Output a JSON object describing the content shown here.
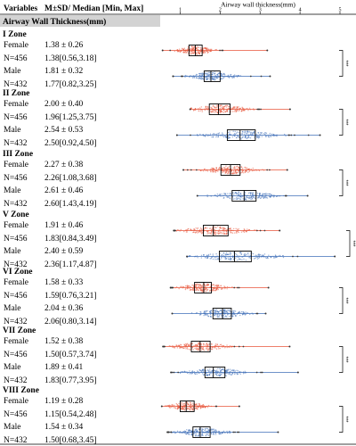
{
  "colors": {
    "female": "#e8553a",
    "male": "#3f6fb8",
    "outlier": "#333333",
    "box": "#000000",
    "section_bg": "#d3d3d3"
  },
  "table": {
    "col_variables": "Variables",
    "col_stats": "M±SD/ Median [Min, Max]",
    "section_title": "Airway Wall Thickness(mm)"
  },
  "chart_data": {
    "type": "box-beeswarm",
    "xlabel": "Airway wall thickness(mm)",
    "xlim": [
      0.5,
      5
    ],
    "xticks": [
      "1",
      "2",
      "3",
      "4",
      "5"
    ],
    "significance": "***",
    "series_styles": [
      {
        "sex": "Female",
        "color": "#e8553a"
      },
      {
        "sex": "Male",
        "color": "#3f6fb8"
      }
    ],
    "zones": [
      {
        "name": "I Zone",
        "groups": [
          {
            "label": "Female",
            "n": "N=456",
            "mean_sd": "1.38 ± 0.26",
            "median_range": "1.38[0.56,3.18]",
            "mean": 1.38,
            "sd": 0.26,
            "median": 1.38,
            "min": 0.56,
            "max": 3.18,
            "q1": 1.22,
            "q3": 1.55
          },
          {
            "label": "Male",
            "n": "N=432",
            "mean_sd": "1.81 ± 0.32",
            "median_range": "1.77[0.82,3.25]",
            "mean": 1.81,
            "sd": 0.32,
            "median": 1.77,
            "min": 0.82,
            "max": 3.25,
            "q1": 1.6,
            "q3": 2.0
          }
        ]
      },
      {
        "name": "II Zone",
        "groups": [
          {
            "label": "Female",
            "n": "N=456",
            "mean_sd": "2.00 ± 0.40",
            "median_range": "1.96[1.25,3.75]",
            "mean": 2.0,
            "sd": 0.4,
            "median": 1.96,
            "min": 1.25,
            "max": 3.75,
            "q1": 1.73,
            "q3": 2.25
          },
          {
            "label": "Male",
            "n": "N=432",
            "mean_sd": "2.54 ± 0.53",
            "median_range": "2.50[0.92,4.50]",
            "mean": 2.54,
            "sd": 0.53,
            "median": 2.5,
            "min": 0.92,
            "max": 4.5,
            "q1": 2.18,
            "q3": 2.88
          }
        ]
      },
      {
        "name": "III Zone",
        "groups": [
          {
            "label": "Female",
            "n": "N=456",
            "mean_sd": "2.27 ± 0.38",
            "median_range": "2.26[1.08,3.68]",
            "mean": 2.27,
            "sd": 0.38,
            "median": 2.26,
            "min": 1.08,
            "max": 3.68,
            "q1": 2.02,
            "q3": 2.5
          },
          {
            "label": "Male",
            "n": "N=432",
            "mean_sd": "2.61 ± 0.46",
            "median_range": "2.60[1.43,4.19]",
            "mean": 2.61,
            "sd": 0.46,
            "median": 2.6,
            "min": 1.43,
            "max": 4.19,
            "q1": 2.3,
            "q3": 2.9
          }
        ]
      },
      {
        "name": "V Zone",
        "groups": [
          {
            "label": "Female",
            "n": "N=456",
            "mean_sd": "1.91 ± 0.46",
            "median_range": "1.83[0.84,3.49]",
            "mean": 1.91,
            "sd": 0.46,
            "median": 1.83,
            "min": 0.84,
            "max": 3.49,
            "q1": 1.58,
            "q3": 2.2
          },
          {
            "label": "Male",
            "n": "N=432",
            "mean_sd": "2.40 ± 0.59",
            "median_range": "2.36[1.17,4.87]",
            "mean": 2.4,
            "sd": 0.59,
            "median": 2.36,
            "min": 1.17,
            "max": 4.87,
            "q1": 1.98,
            "q3": 2.78
          }
        ]
      },
      {
        "name": "VI Zone",
        "groups": [
          {
            "label": "Female",
            "n": "N=456",
            "mean_sd": "1.58 ± 0.33",
            "median_range": "1.59[0.76,3.21]",
            "mean": 1.58,
            "sd": 0.33,
            "median": 1.59,
            "min": 0.76,
            "max": 3.21,
            "q1": 1.36,
            "q3": 1.78
          },
          {
            "label": "Male",
            "n": "N=432",
            "mean_sd": "2.04 ± 0.36",
            "median_range": "2.06[0.80,3.14]",
            "mean": 2.04,
            "sd": 0.36,
            "median": 2.06,
            "min": 0.8,
            "max": 3.14,
            "q1": 1.82,
            "q3": 2.28
          }
        ]
      },
      {
        "name": "VII Zone",
        "groups": [
          {
            "label": "Female",
            "n": "N=456",
            "mean_sd": "1.52 ± 0.38",
            "median_range": "1.50[0.57,3.74]",
            "mean": 1.52,
            "sd": 0.38,
            "median": 1.5,
            "min": 0.57,
            "max": 3.74,
            "q1": 1.28,
            "q3": 1.75
          },
          {
            "label": "Male",
            "n": "N=432",
            "mean_sd": "1.89 ± 0.41",
            "median_range": "1.83[0.77,3.95]",
            "mean": 1.89,
            "sd": 0.41,
            "median": 1.83,
            "min": 0.77,
            "max": 3.95,
            "q1": 1.62,
            "q3": 2.12
          }
        ]
      },
      {
        "name": "VIII Zone",
        "groups": [
          {
            "label": "Female",
            "n": "N=456",
            "mean_sd": "1.19 ± 0.28",
            "median_range": "1.15[0.54,2.48]",
            "mean": 1.19,
            "sd": 0.28,
            "median": 1.15,
            "min": 0.54,
            "max": 2.48,
            "q1": 1.0,
            "q3": 1.35
          },
          {
            "label": "Male",
            "n": "N=432",
            "mean_sd": "1.54 ± 0.34",
            "median_range": "1.50[0.68,3.45]",
            "mean": 1.54,
            "sd": 0.34,
            "median": 1.5,
            "min": 0.68,
            "max": 3.45,
            "q1": 1.32,
            "q3": 1.75
          }
        ]
      }
    ]
  }
}
